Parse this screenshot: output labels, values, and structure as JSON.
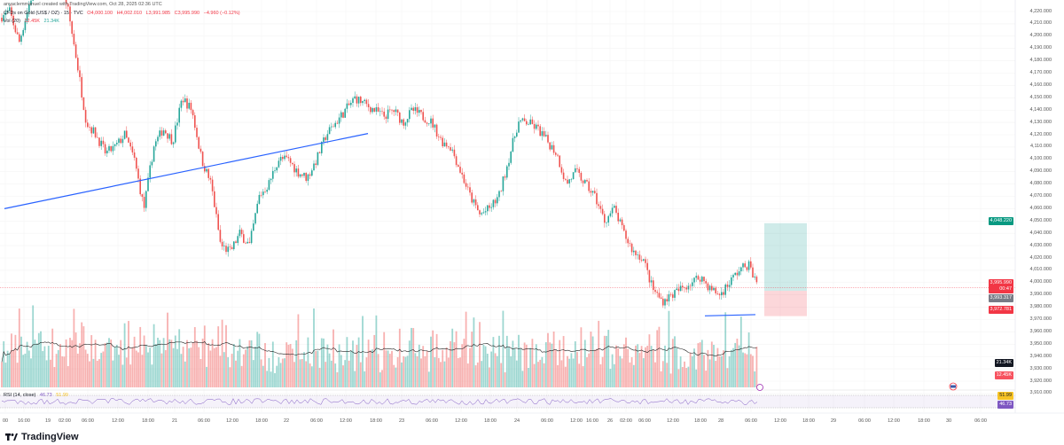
{
  "header": {
    "credit": "anyaclemmanuel created with TradingView.com, Oct 28, 2025 02:36 UTC",
    "symbol": "CFDs on Gold (US$ / OZ) · 15 · TVC",
    "open": "O4,000.100",
    "high": "H4,002.010",
    "low": "L3,991.985",
    "close": "C3,995.990",
    "change": "−4.960 (−0.12%)",
    "vol_label": "Vol (20)",
    "vol_value": "12.45K",
    "vol_ma": "21.34K",
    "rsi_label": "RSI (14, close)",
    "rsi_value": "46.73",
    "rsi_ma": "51.99"
  },
  "axis_labels": {
    "target": "4,048.220",
    "price": "3,995.990",
    "countdown": "00:47",
    "entry": "3,993.317",
    "stop": "3,972.781",
    "vol_ma": "21.34K",
    "vol": "12.45K",
    "rsi_ma": "51.99",
    "rsi": "46.73"
  },
  "colors": {
    "up": "#26a69a",
    "down": "#ef5350",
    "trendline": "#2962ff",
    "target_zone": "#26a69a",
    "stop_zone": "#f23645"
  },
  "branding": "TradingView",
  "chart_data": {
    "type": "candlestick",
    "symbol": "XAUUSD 15m",
    "ylim": [
      3905,
      4230
    ],
    "y_ticks": [
      4220,
      4210,
      4200,
      4190,
      4180,
      4170,
      4160,
      4150,
      4140,
      4130,
      4120,
      4110,
      4100,
      4090,
      4080,
      4070,
      4060,
      4050,
      4040,
      4030,
      4020,
      4010,
      4000,
      3990,
      3980,
      3970,
      3960,
      3950,
      3940,
      3930,
      3920,
      3910
    ],
    "x_ticks": [
      "00",
      "16:00",
      "19",
      "02:00",
      "06:00",
      "12:00",
      "18:00",
      "21",
      "06:00",
      "12:00",
      "18:00",
      "22",
      "06:00",
      "12:00",
      "18:00",
      "23",
      "06:00",
      "12:00",
      "18:00",
      "24",
      "06:00",
      "12:00",
      "16:00",
      "26",
      "02:00",
      "06:00",
      "12:00",
      "18:00",
      "28",
      "06:00",
      "12:00",
      "18:00",
      "29",
      "06:00",
      "12:00",
      "18:00",
      "30",
      "06:00"
    ],
    "price_path": [
      4215,
      4220,
      4195,
      4225,
      4250,
      4280,
      4250,
      4225,
      4180,
      4130,
      4120,
      4105,
      4110,
      4120,
      4100,
      4060,
      4110,
      4125,
      4115,
      4150,
      4140,
      4100,
      4080,
      4030,
      4025,
      4040,
      4030,
      4070,
      4080,
      4100,
      4100,
      4090,
      4085,
      4100,
      4120,
      4130,
      4140,
      4150,
      4145,
      4140,
      4135,
      4140,
      4130,
      4140,
      4135,
      4130,
      4115,
      4110,
      4090,
      4070,
      4055,
      4060,
      4070,
      4100,
      4130,
      4130,
      4125,
      4115,
      4105,
      4080,
      4090,
      4080,
      4070,
      4050,
      4060,
      4040,
      4025,
      4020,
      3995,
      3985,
      3990,
      3995,
      4000,
      4005,
      3995,
      3990,
      4000,
      4010,
      4015,
      3996
    ],
    "position": {
      "target": 4048.22,
      "entry": 3993.317,
      "stop": 3972.781
    },
    "trendlines": [
      {
        "from": 4060,
        "to": 4121
      },
      {
        "from": 3973,
        "to": 3974
      }
    ]
  }
}
